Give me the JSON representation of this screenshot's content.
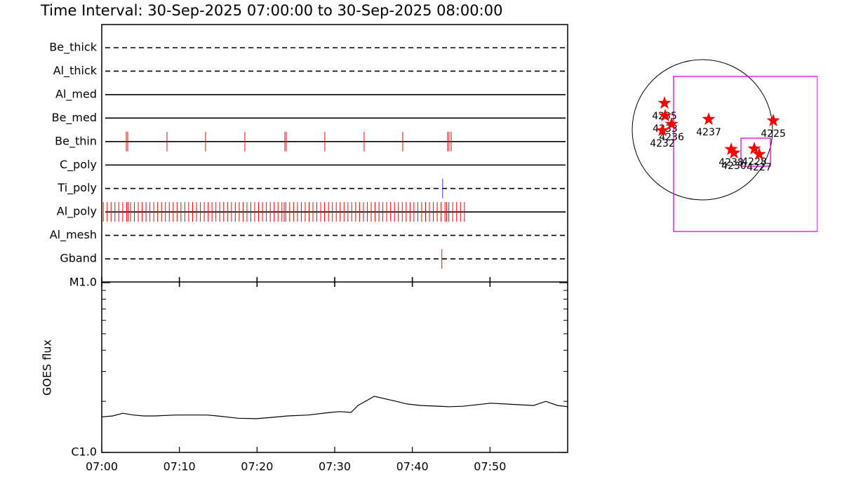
{
  "title": "Time Interval: 30-Sep-2025 07:00:00 to 30-Sep-2025 08:00:00",
  "chart_data": [
    {
      "type": "timeline",
      "xlim": [
        0,
        60
      ],
      "rows": [
        {
          "name": "Be_thick",
          "line_style": "dashed",
          "color": "#ff0000",
          "events": []
        },
        {
          "name": "Al_thick",
          "line_style": "dashed",
          "color": "#ff0000",
          "events": []
        },
        {
          "name": "Al_med",
          "line_style": "solid",
          "color": "#ff0000",
          "events": []
        },
        {
          "name": "Be_med",
          "line_style": "solid",
          "color": "#ff0000",
          "events": []
        },
        {
          "name": "Be_thin",
          "line_style": "solid",
          "color": "#ff0000",
          "events": [
            3.16,
            3.34,
            8.4,
            13.37,
            18.43,
            23.58,
            23.76,
            28.73,
            33.79,
            38.76,
            44.54,
            44.72,
            45.0
          ]
        },
        {
          "name": "C_poly",
          "line_style": "solid",
          "color": "#ff0000",
          "events": []
        },
        {
          "name": "Ti_poly",
          "line_style": "dashed",
          "color": "#3030c0",
          "events": [
            43.9
          ]
        },
        {
          "name": "Al_poly",
          "line_style": "solid",
          "color": "#ff0000",
          "events": [
            0.2,
            0.7,
            1.2,
            1.7,
            2.2,
            2.7,
            3.2,
            3.4,
            3.7,
            4.2,
            4.7,
            5.2,
            5.7,
            6.2,
            6.7,
            7.2,
            7.7,
            8.2,
            8.7,
            9.2,
            9.7,
            10.2,
            10.7,
            11.2,
            11.7,
            12.2,
            12.7,
            13.2,
            13.7,
            14.2,
            14.7,
            15.2,
            15.7,
            16.2,
            16.7,
            17.2,
            17.7,
            18.2,
            18.7,
            19.2,
            19.7,
            20.2,
            20.7,
            21.2,
            21.7,
            22.2,
            22.7,
            23.2,
            23.5,
            23.7,
            24.2,
            24.7,
            25.2,
            25.7,
            26.2,
            26.7,
            27.2,
            27.7,
            28.2,
            28.7,
            29.2,
            29.7,
            30.2,
            30.7,
            31.2,
            31.7,
            32.2,
            32.7,
            33.2,
            33.7,
            34.2,
            34.7,
            35.2,
            35.7,
            36.2,
            36.7,
            37.2,
            37.7,
            38.2,
            38.7,
            39.2,
            39.7,
            40.2,
            40.7,
            41.2,
            41.7,
            42.2,
            42.7,
            43.2,
            43.7,
            44.2,
            44.4,
            44.7,
            45.2,
            45.7,
            46.2,
            46.7
          ]
        },
        {
          "name": "Al_mesh",
          "line_style": "dashed",
          "color": "#ff0000",
          "events": []
        },
        {
          "name": "Gband",
          "line_style": "dashed",
          "color": "#ff0000",
          "events": [
            43.8
          ]
        }
      ]
    },
    {
      "type": "line",
      "ylabel": "GOES flux",
      "log": true,
      "color": "#000000",
      "xlim": [
        0,
        60
      ],
      "ylim": [
        1e-06,
        1e-05
      ],
      "xticks": [
        {
          "value": 0,
          "label": "07:00"
        },
        {
          "value": 10,
          "label": "07:10"
        },
        {
          "value": 20,
          "label": "07:20"
        },
        {
          "value": 30,
          "label": "07:30"
        },
        {
          "value": 40,
          "label": "07:40"
        },
        {
          "value": 50,
          "label": "07:50"
        }
      ],
      "yticks": [
        {
          "value": 1e-06,
          "label": "C1.0"
        },
        {
          "value": 1e-05,
          "label": "M1.0"
        }
      ],
      "yminor": [
        2e-06,
        3e-06,
        4e-06,
        5e-06,
        6e-06,
        7e-06,
        8e-06,
        9e-06
      ],
      "x": [
        0,
        1.4,
        2.7,
        4.1,
        5.4,
        6.8,
        9.5,
        13.6,
        14.9,
        17.6,
        19.9,
        22.1,
        23.9,
        26.6,
        29.4,
        30.7,
        32.1,
        33.0,
        35.1,
        37.5,
        39.3,
        41.1,
        44.7,
        46.5,
        50.1,
        51.9,
        55.6,
        57.2,
        58.7,
        60
      ],
      "values": [
        1.62e-06,
        1.64e-06,
        1.7e-06,
        1.66e-06,
        1.64e-06,
        1.64e-06,
        1.66e-06,
        1.66e-06,
        1.64e-06,
        1.59e-06,
        1.58e-06,
        1.61e-06,
        1.64e-06,
        1.66e-06,
        1.72e-06,
        1.74e-06,
        1.72e-06,
        1.89e-06,
        2.14e-06,
        2.02e-06,
        1.93e-06,
        1.89e-06,
        1.86e-06,
        1.87e-06,
        1.95e-06,
        1.93e-06,
        1.89e-06,
        2e-06,
        1.89e-06,
        1.86e-06
      ]
    },
    {
      "type": "map",
      "sun_radius": 960,
      "star_color": "#ff0000",
      "box_color": "#e000e0",
      "boxes": [
        {
          "x": [
            -394,
            1574
          ],
          "y": [
            730,
            -1392
          ]
        },
        {
          "x": [
            528,
            931
          ],
          "y": [
            -115,
            -499
          ]
        }
      ],
      "points": [
        {
          "label": "4235",
          "x": -518,
          "y": 365
        },
        {
          "label": "4233",
          "x": -509,
          "y": 192
        },
        {
          "label": "4236",
          "x": -422,
          "y": 77
        },
        {
          "label": "4232",
          "x": -547,
          "y": -10
        },
        {
          "label": "4237",
          "x": 86,
          "y": 144
        },
        {
          "label": "4225",
          "x": 970,
          "y": 125
        },
        {
          "label": "4238",
          "x": 394,
          "y": -269
        },
        {
          "label": "4230",
          "x": 432,
          "y": -317
        },
        {
          "label": "4228",
          "x": 710,
          "y": -259
        },
        {
          "label": "4227",
          "x": 778,
          "y": -336
        }
      ]
    }
  ]
}
